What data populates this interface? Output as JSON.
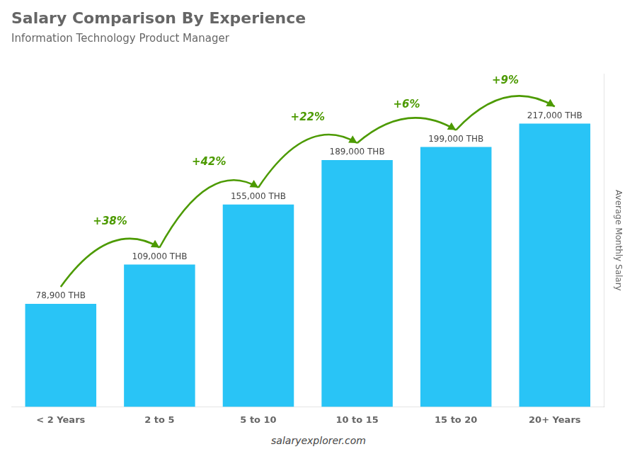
{
  "chart_data": {
    "type": "bar",
    "title": "Salary Comparison By Experience",
    "subtitle": "Information Technology Product Manager",
    "categories": [
      "< 2 Years",
      "2 to 5",
      "5 to 10",
      "10 to 15",
      "15 to 20",
      "20+ Years"
    ],
    "values": [
      78900,
      109000,
      155000,
      189000,
      199000,
      217000
    ],
    "value_labels": [
      "78,900 THB",
      "109,000 THB",
      "155,000 THB",
      "189,000 THB",
      "199,000 THB",
      "217,000 THB"
    ],
    "data_labels": true,
    "annotations": [
      "+38%",
      "+42%",
      "+22%",
      "+6%",
      "+9%"
    ],
    "color": "#29c4f6",
    "ylabel": "Average Monthly Salary",
    "footer": "salaryexplorer.com",
    "ylim": [
      0,
      255000
    ],
    "grid": false,
    "tick_labels": "x"
  }
}
